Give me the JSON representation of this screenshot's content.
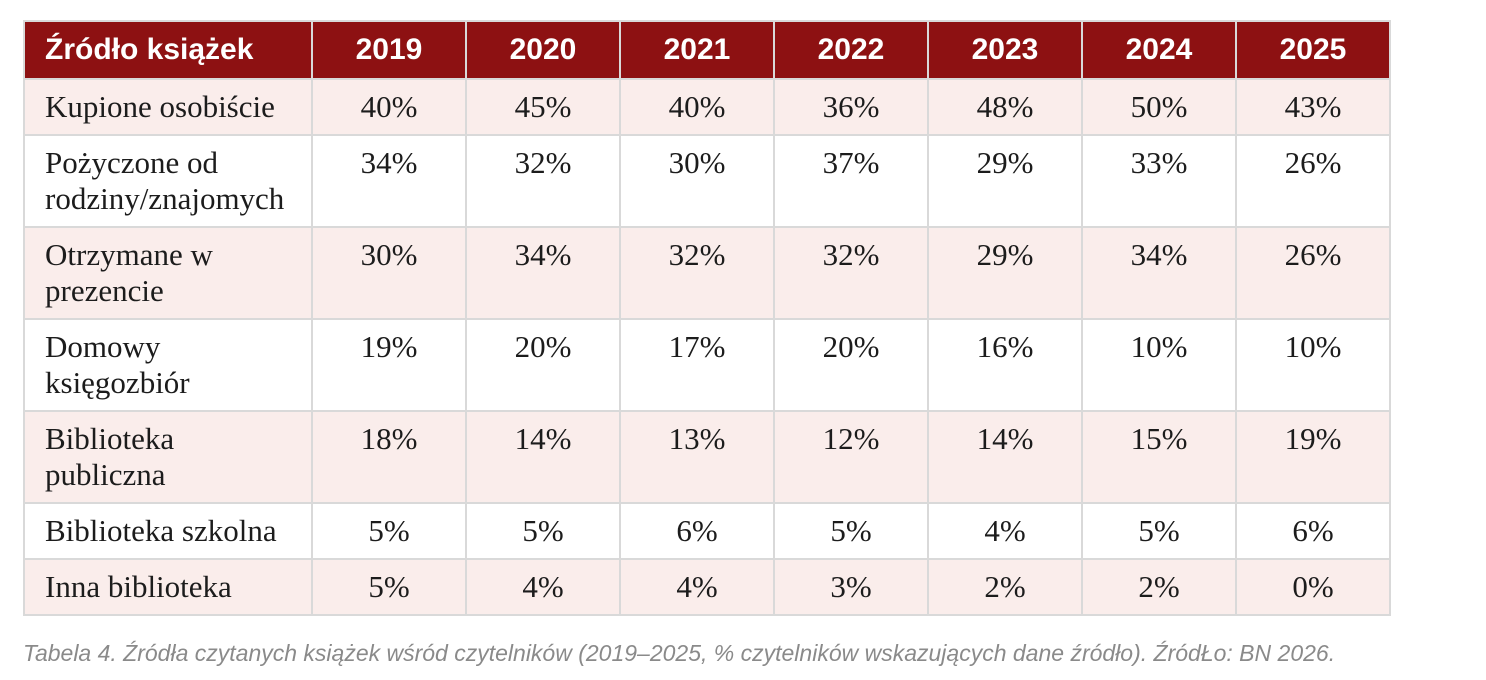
{
  "table": {
    "header": {
      "source_label": "Źródło książek",
      "years": [
        "2019",
        "2020",
        "2021",
        "2022",
        "2023",
        "2024",
        "2025"
      ]
    },
    "rows": [
      {
        "label": "Kupione osobiście",
        "values": [
          "40%",
          "45%",
          "40%",
          "36%",
          "48%",
          "50%",
          "43%"
        ]
      },
      {
        "label": "Pożyczone od\nrodziny/znajomych",
        "values": [
          "34%",
          "32%",
          "30%",
          "37%",
          "29%",
          "33%",
          "26%"
        ]
      },
      {
        "label": "Otrzymane w\nprezencie",
        "values": [
          "30%",
          "34%",
          "32%",
          "32%",
          "29%",
          "34%",
          "26%"
        ]
      },
      {
        "label": "Domowy\nksięgozbiór",
        "values": [
          "19%",
          "20%",
          "17%",
          "20%",
          "16%",
          "10%",
          "10%"
        ]
      },
      {
        "label": "Biblioteka\npubliczna",
        "values": [
          "18%",
          "14%",
          "13%",
          "12%",
          "14%",
          "15%",
          "19%"
        ]
      },
      {
        "label": "Biblioteka szkolna",
        "values": [
          "5%",
          "5%",
          "6%",
          "5%",
          "4%",
          "5%",
          "6%"
        ]
      },
      {
        "label": "Inna biblioteka",
        "values": [
          "5%",
          "4%",
          "4%",
          "3%",
          "2%",
          "2%",
          "0%"
        ]
      }
    ]
  },
  "caption": "Tabela 4. Źródła czytanych książek wśród czytelników (2019–2025, % czytelników wskazujących dane źródło). ŹródŁo: BN 2026.",
  "colors": {
    "header_bg": "#8D1112",
    "header_text": "#FFFFFF",
    "row_alt_bg": "#FAEDEB",
    "row_bg": "#FFFFFF",
    "border": "#D9D9D9",
    "cell_text": "#1C1C1C",
    "caption_text": "#8A8A8A"
  },
  "chart_data": {
    "type": "table",
    "title": "Źródło książek",
    "categories": [
      "2019",
      "2020",
      "2021",
      "2022",
      "2023",
      "2024",
      "2025"
    ],
    "unit": "%",
    "series": [
      {
        "name": "Kupione osobiście",
        "values": [
          40,
          45,
          40,
          36,
          48,
          50,
          43
        ]
      },
      {
        "name": "Pożyczone od rodziny/znajomych",
        "values": [
          34,
          32,
          30,
          37,
          29,
          33,
          26
        ]
      },
      {
        "name": "Otrzymane w prezencie",
        "values": [
          30,
          34,
          32,
          32,
          29,
          34,
          26
        ]
      },
      {
        "name": "Domowy księgozbiór",
        "values": [
          19,
          20,
          17,
          20,
          16,
          10,
          10
        ]
      },
      {
        "name": "Biblioteka publiczna",
        "values": [
          18,
          14,
          13,
          12,
          14,
          15,
          19
        ]
      },
      {
        "name": "Biblioteka szkolna",
        "values": [
          5,
          5,
          6,
          5,
          4,
          5,
          6
        ]
      },
      {
        "name": "Inna biblioteka",
        "values": [
          5,
          4,
          4,
          3,
          2,
          2,
          0
        ]
      }
    ],
    "caption": "Tabela 4. Źródła czytanych książek wśród czytelników (2019–2025, % czytelników wskazujących dane źródło). ŹródŁo: BN 2026."
  }
}
